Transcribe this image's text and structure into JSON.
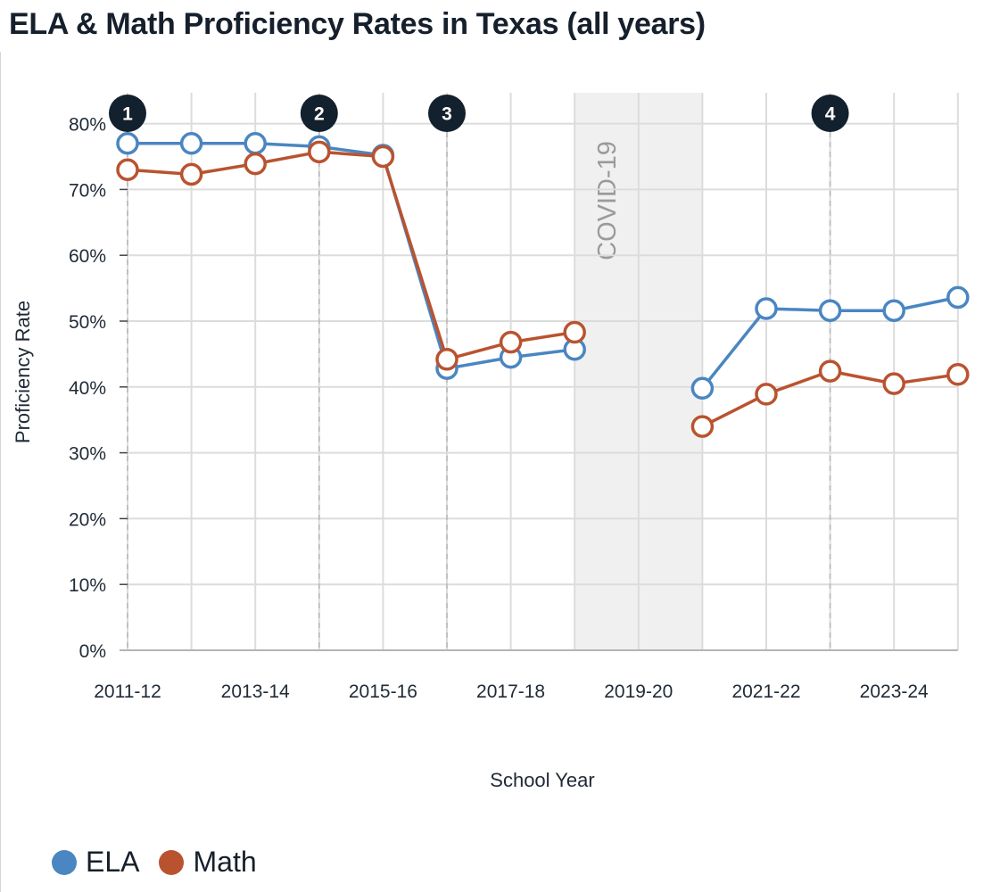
{
  "chart_data": {
    "type": "line",
    "title": "ELA & Math Proficiency Rates in Texas (all years)",
    "xlabel": "School Year",
    "ylabel": "Proficiency Rate",
    "x": [
      "2011-12",
      "2012-13",
      "2013-14",
      "2014-15",
      "2015-16",
      "2016-17",
      "2017-18",
      "2018-19",
      "2019-20",
      "2020-21",
      "2021-22",
      "2022-23",
      "2023-24",
      "2024-25"
    ],
    "x_tick_labels": [
      "2011-12",
      "2013-14",
      "2015-16",
      "2017-18",
      "2019-20",
      "2021-22",
      "2023-24"
    ],
    "y_tick_labels": [
      "0%",
      "10%",
      "20%",
      "30%",
      "40%",
      "50%",
      "60%",
      "70%",
      "80%"
    ],
    "ylim": [
      0,
      80
    ],
    "grid": true,
    "legend_position": "bottom-left",
    "series": [
      {
        "name": "ELA",
        "color": "#4a86c1",
        "values": [
          77,
          77,
          77,
          76.5,
          75.2,
          42.8,
          44.5,
          45.7,
          null,
          39.8,
          51.9,
          51.6,
          51.6,
          53.6
        ]
      },
      {
        "name": "Math",
        "color": "#b9532f",
        "values": [
          73,
          72.3,
          73.9,
          75.7,
          75,
          44.2,
          46.8,
          48.3,
          null,
          34,
          38.9,
          42.4,
          40.5,
          41.9
        ]
      }
    ],
    "shaded_band": {
      "label": "COVID-19",
      "from": "2018-19",
      "to": "2020-21",
      "color": "#f0f0f0"
    },
    "annotations": [
      {
        "label": "1",
        "x": "2011-12"
      },
      {
        "label": "2",
        "x": "2014-15"
      },
      {
        "label": "3",
        "x": "2016-17"
      },
      {
        "label": "4",
        "x": "2022-23"
      }
    ],
    "annotation_color": "#13202d"
  }
}
